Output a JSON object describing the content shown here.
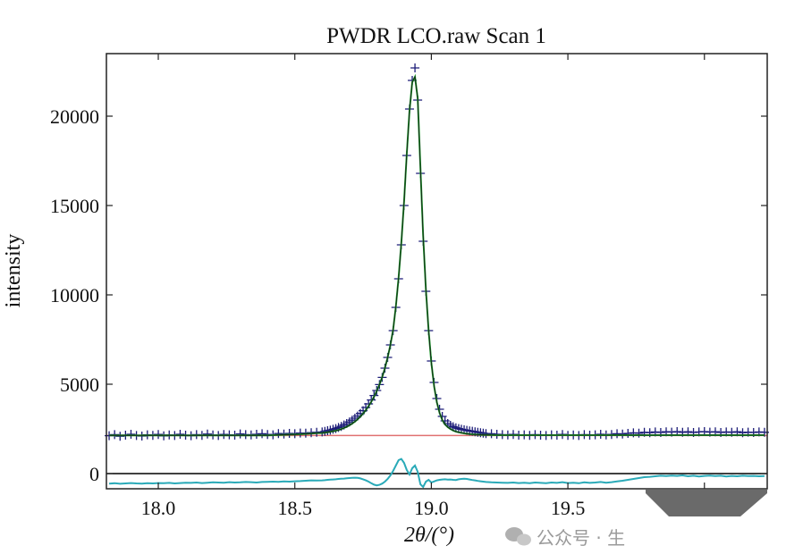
{
  "chart_data": {
    "type": "line",
    "title": "PWDR LCO.raw Scan 1",
    "xlabel": "2θ/(°)",
    "ylabel": "intensity",
    "xlim": [
      17.81,
      20.23
    ],
    "ylim": [
      -850,
      23500
    ],
    "xticks": [
      18.0,
      18.5,
      19.0,
      19.5,
      20.0
    ],
    "xtick_labels": [
      "18.0",
      "18.5",
      "19.0",
      "19.5",
      ""
    ],
    "yticks": [
      0,
      5000,
      10000,
      15000,
      20000
    ],
    "ytick_labels": [
      "0",
      "5000",
      "10000",
      "15000",
      "20000"
    ],
    "grid": false,
    "background_level": 2130,
    "colors": {
      "observed": "#1c1c78",
      "calculated": "#1f9a2e",
      "background": "#e07070",
      "difference": "#2aaab8",
      "zero_line": "#000000"
    },
    "x": [
      17.82,
      17.84,
      17.86,
      17.88,
      17.9,
      17.92,
      17.94,
      17.96,
      17.98,
      18.0,
      18.02,
      18.04,
      18.06,
      18.08,
      18.1,
      18.12,
      18.14,
      18.16,
      18.18,
      18.2,
      18.22,
      18.24,
      18.26,
      18.28,
      18.3,
      18.32,
      18.34,
      18.36,
      18.38,
      18.4,
      18.42,
      18.44,
      18.46,
      18.48,
      18.5,
      18.52,
      18.54,
      18.56,
      18.58,
      18.6,
      18.61,
      18.62,
      18.63,
      18.64,
      18.65,
      18.66,
      18.67,
      18.68,
      18.69,
      18.7,
      18.71,
      18.72,
      18.73,
      18.74,
      18.75,
      18.76,
      18.77,
      18.78,
      18.79,
      18.8,
      18.81,
      18.82,
      18.83,
      18.84,
      18.85,
      18.86,
      18.87,
      18.88,
      18.89,
      18.9,
      18.91,
      18.92,
      18.93,
      18.94,
      18.95,
      18.96,
      18.97,
      18.98,
      18.99,
      19.0,
      19.01,
      19.02,
      19.03,
      19.04,
      19.05,
      19.06,
      19.07,
      19.08,
      19.09,
      19.1,
      19.11,
      19.12,
      19.13,
      19.14,
      19.15,
      19.16,
      19.17,
      19.18,
      19.19,
      19.2,
      19.22,
      19.24,
      19.26,
      19.28,
      19.3,
      19.32,
      19.34,
      19.36,
      19.38,
      19.4,
      19.42,
      19.44,
      19.46,
      19.48,
      19.5,
      19.52,
      19.54,
      19.56,
      19.58,
      19.6,
      19.62,
      19.64,
      19.66,
      19.68,
      19.7,
      19.72,
      19.74,
      19.76,
      19.78,
      19.8,
      19.82,
      19.84,
      19.86,
      19.88,
      19.9,
      19.92,
      19.94,
      19.96,
      19.98,
      20.0,
      20.02,
      20.04,
      20.06,
      20.08,
      20.1,
      20.12,
      20.14,
      20.16,
      20.18,
      20.2,
      20.22
    ],
    "series": [
      {
        "role": "observed",
        "marker": "+",
        "values": [
          2120,
          2180,
          2090,
          2150,
          2200,
          2130,
          2100,
          2170,
          2140,
          2190,
          2110,
          2160,
          2130,
          2200,
          2150,
          2120,
          2180,
          2140,
          2210,
          2160,
          2130,
          2190,
          2170,
          2150,
          2220,
          2180,
          2160,
          2200,
          2230,
          2190,
          2170,
          2240,
          2210,
          2250,
          2230,
          2270,
          2260,
          2290,
          2310,
          2330,
          2360,
          2400,
          2430,
          2480,
          2520,
          2580,
          2640,
          2720,
          2800,
          2890,
          2990,
          3100,
          3220,
          3360,
          3520,
          3700,
          3900,
          4120,
          4370,
          4650,
          4980,
          5380,
          5900,
          6500,
          7200,
          8000,
          9300,
          10900,
          12800,
          15000,
          17800,
          20400,
          22000,
          22700,
          20900,
          16800,
          13000,
          10200,
          8000,
          6300,
          5100,
          4200,
          3600,
          3200,
          2950,
          2800,
          2700,
          2620,
          2560,
          2520,
          2480,
          2450,
          2420,
          2390,
          2370,
          2340,
          2310,
          2290,
          2260,
          2240,
          2230,
          2200,
          2180,
          2160,
          2190,
          2150,
          2170,
          2140,
          2180,
          2150,
          2130,
          2170,
          2150,
          2190,
          2140,
          2160,
          2130,
          2180,
          2150,
          2170,
          2200,
          2160,
          2190,
          2230,
          2210,
          2250,
          2280,
          2260,
          2310,
          2290,
          2330,
          2300,
          2340,
          2320,
          2350,
          2310,
          2340,
          2300,
          2330,
          2350,
          2320,
          2340,
          2300,
          2330,
          2310,
          2340,
          2290,
          2320,
          2300,
          2330,
          2310
        ]
      },
      {
        "role": "calculated",
        "values": [
          2140,
          2140,
          2140,
          2140,
          2140,
          2140,
          2140,
          2140,
          2140,
          2140,
          2140,
          2140,
          2140,
          2140,
          2140,
          2140,
          2140,
          2140,
          2140,
          2140,
          2140,
          2140,
          2140,
          2140,
          2140,
          2140,
          2140,
          2140,
          2140,
          2140,
          2150,
          2160,
          2170,
          2180,
          2190,
          2200,
          2220,
          2240,
          2260,
          2270,
          2290,
          2310,
          2340,
          2370,
          2400,
          2440,
          2490,
          2550,
          2620,
          2700,
          2800,
          2910,
          3040,
          3190,
          3360,
          3550,
          3770,
          4020,
          4300,
          4620,
          4980,
          5400,
          5900,
          6500,
          7200,
          8050,
          9350,
          10950,
          12900,
          15200,
          17900,
          20300,
          21900,
          22200,
          21000,
          17100,
          13300,
          10300,
          8000,
          6200,
          4900,
          4000,
          3400,
          3000,
          2750,
          2600,
          2490,
          2410,
          2350,
          2310,
          2280,
          2250,
          2230,
          2210,
          2200,
          2190,
          2180,
          2170,
          2165,
          2160,
          2155,
          2150,
          2150,
          2150,
          2150,
          2150,
          2150,
          2150,
          2150,
          2150,
          2150,
          2150,
          2150,
          2150,
          2150,
          2150,
          2150,
          2150,
          2150,
          2150,
          2150,
          2150,
          2150,
          2150,
          2150,
          2150,
          2150,
          2150,
          2150,
          2150,
          2150,
          2150,
          2150,
          2150,
          2150,
          2150,
          2150,
          2150,
          2150,
          2150,
          2150,
          2150,
          2150,
          2150,
          2150,
          2150,
          2150,
          2150,
          2150,
          2150,
          2150
        ]
      },
      {
        "role": "difference",
        "values": [
          -560,
          -540,
          -570,
          -550,
          -530,
          -550,
          -560,
          -540,
          -550,
          -530,
          -540,
          -520,
          -550,
          -530,
          -510,
          -520,
          -500,
          -530,
          -510,
          -490,
          -500,
          -510,
          -480,
          -500,
          -490,
          -470,
          -480,
          -500,
          -470,
          -460,
          -450,
          -460,
          -440,
          -450,
          -430,
          -420,
          -400,
          -380,
          -390,
          -380,
          -370,
          -350,
          -340,
          -330,
          -320,
          -300,
          -290,
          -280,
          -260,
          -250,
          -240,
          -230,
          -240,
          -270,
          -320,
          -380,
          -450,
          -540,
          -620,
          -660,
          -630,
          -560,
          -450,
          -300,
          -100,
          150,
          450,
          750,
          820,
          600,
          200,
          -50,
          300,
          450,
          100,
          -600,
          -750,
          -450,
          -350,
          -500,
          -440,
          -380,
          -350,
          -330,
          -320,
          -340,
          -330,
          -350,
          -360,
          -320,
          -300,
          -290,
          -300,
          -330,
          -360,
          -380,
          -410,
          -430,
          -450,
          -470,
          -490,
          -500,
          -510,
          -520,
          -500,
          -530,
          -510,
          -540,
          -500,
          -520,
          -540,
          -500,
          -520,
          -480,
          -530,
          -510,
          -540,
          -490,
          -520,
          -500,
          -470,
          -510,
          -480,
          -440,
          -400,
          -350,
          -300,
          -250,
          -200,
          -180,
          -150,
          -120,
          -140,
          -110,
          -130,
          -100,
          -150,
          -120,
          -160,
          -130,
          -110,
          -140,
          -120,
          -160,
          -130,
          -150,
          -120,
          -140,
          -130,
          -150,
          -140
        ]
      }
    ]
  },
  "watermark": {
    "text": "公众号 · 生"
  }
}
